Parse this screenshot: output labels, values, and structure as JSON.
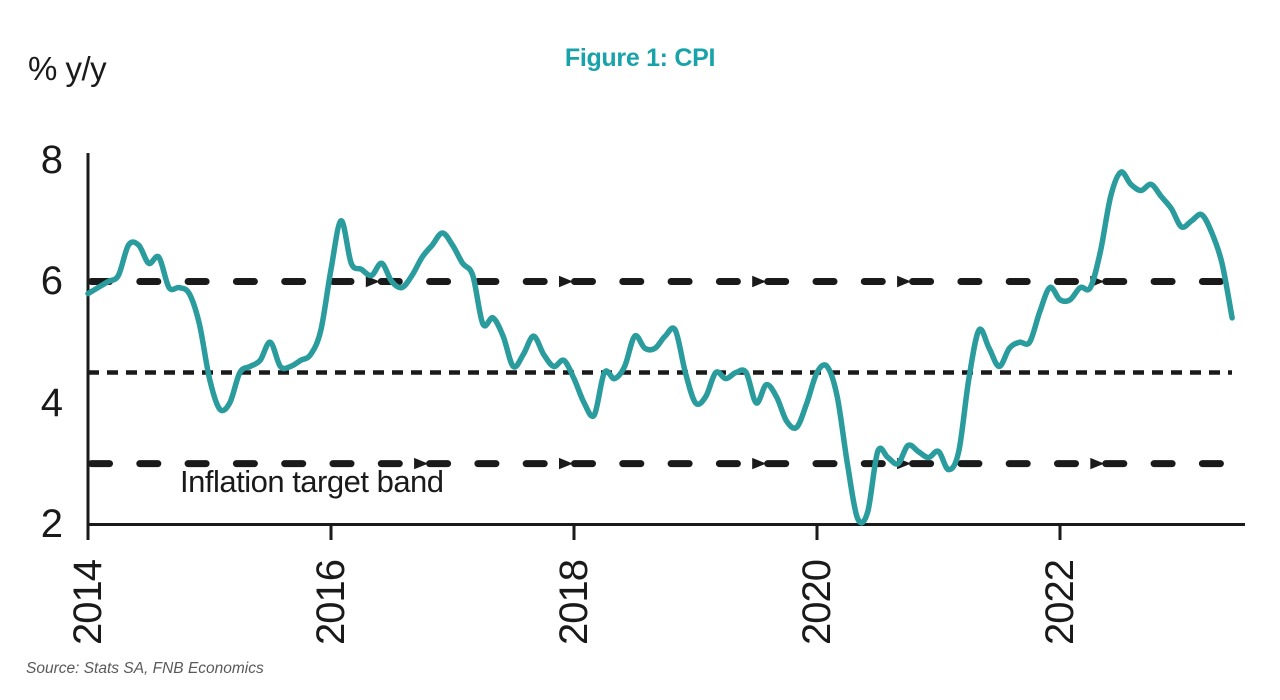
{
  "figure": {
    "title": "Figure 1: CPI",
    "y_axis_unit": "% y/y",
    "annotation": "Inflation target band",
    "source": "Source: Stats SA, FNB Economics"
  },
  "colors": {
    "title": "#18A3AA",
    "line": "#2B9C9D",
    "axis": "#1A1A1A",
    "text": "#1A1A1A",
    "source_text": "#595959"
  },
  "chart_data": {
    "type": "line",
    "title": "Figure 1: CPI",
    "xlabel": "",
    "ylabel": "% y/y",
    "ylim": [
      2,
      8
    ],
    "y_ticks": [
      8,
      6,
      4,
      2
    ],
    "x_tick_labels": [
      "2014",
      "2016",
      "2018",
      "2020",
      "2022"
    ],
    "x_start_month": "2014-01",
    "x_end_month": "2023-06",
    "frequency": "monthly",
    "grid": false,
    "legend_position": "none",
    "reference_lines": {
      "inflation_target_upper": 6,
      "inflation_target_midpoint": 4.5,
      "inflation_target_lower": 3
    },
    "annotations": [
      "Inflation target band"
    ],
    "series": [
      {
        "name": "CPI y/y %",
        "values": [
          5.8,
          5.9,
          6.0,
          6.1,
          6.6,
          6.6,
          6.3,
          6.4,
          5.9,
          5.9,
          5.8,
          5.3,
          4.4,
          3.9,
          4.0,
          4.5,
          4.6,
          4.7,
          5.0,
          4.6,
          4.6,
          4.7,
          4.8,
          5.2,
          6.2,
          7.0,
          6.3,
          6.2,
          6.1,
          6.3,
          6.0,
          5.9,
          6.1,
          6.4,
          6.6,
          6.8,
          6.6,
          6.3,
          6.1,
          5.3,
          5.4,
          5.1,
          4.6,
          4.8,
          5.1,
          4.8,
          4.6,
          4.7,
          4.4,
          4.0,
          3.8,
          4.5,
          4.4,
          4.6,
          5.1,
          4.9,
          4.9,
          5.1,
          5.2,
          4.5,
          4.0,
          4.1,
          4.5,
          4.4,
          4.5,
          4.5,
          4.0,
          4.3,
          4.1,
          3.7,
          3.6,
          4.0,
          4.5,
          4.6,
          4.1,
          3.0,
          2.1,
          2.2,
          3.2,
          3.1,
          3.0,
          3.3,
          3.2,
          3.1,
          3.2,
          2.9,
          3.2,
          4.4,
          5.2,
          4.9,
          4.6,
          4.9,
          5.0,
          5.0,
          5.5,
          5.9,
          5.7,
          5.7,
          5.9,
          5.9,
          6.5,
          7.4,
          7.8,
          7.6,
          7.5,
          7.6,
          7.4,
          7.2,
          6.9,
          7.0,
          7.1,
          6.8,
          6.3,
          5.4
        ]
      }
    ]
  }
}
